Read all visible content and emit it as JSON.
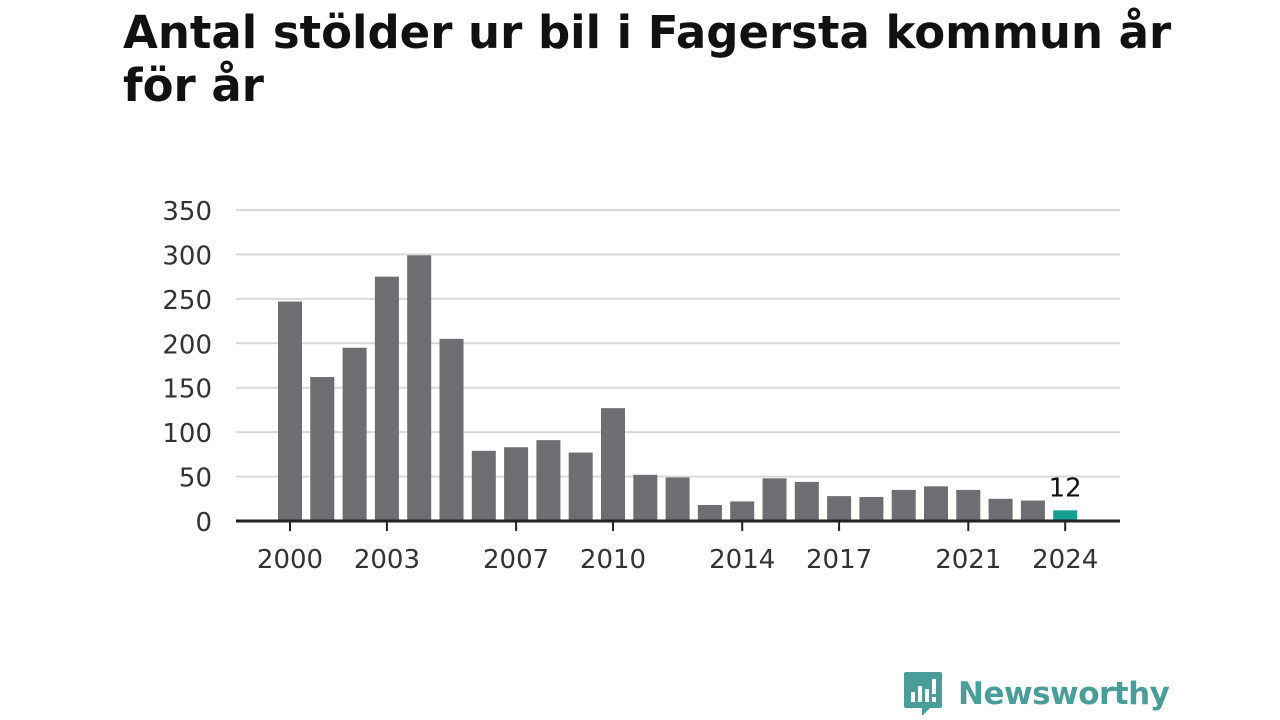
{
  "title": "Antal stölder ur bil i Fagersta kommun år för år",
  "brand": {
    "name": "Newsworthy",
    "icon": "newsworthy-logo-icon",
    "color": "#4a9e99"
  },
  "colors": {
    "bar": "#6e6d72",
    "highlight": "#14a092",
    "grid": "#d9d9d9",
    "axis": "#222222"
  },
  "chart_data": {
    "type": "bar",
    "title": "Antal stölder ur bil i Fagersta kommun år för år",
    "xlabel": "",
    "ylabel": "",
    "categories": [
      "2000",
      "2001",
      "2002",
      "2003",
      "2004",
      "2005",
      "2006",
      "2007",
      "2008",
      "2009",
      "2010",
      "2011",
      "2012",
      "2013",
      "2014",
      "2015",
      "2016",
      "2017",
      "2018",
      "2019",
      "2020",
      "2021",
      "2022",
      "2023",
      "2024"
    ],
    "values": [
      247,
      162,
      195,
      275,
      299,
      205,
      79,
      83,
      91,
      77,
      127,
      52,
      49,
      18,
      22,
      48,
      44,
      28,
      27,
      35,
      39,
      35,
      25,
      23,
      12
    ],
    "ylim": [
      0,
      350
    ],
    "yticks": [
      0,
      50,
      100,
      150,
      200,
      250,
      300,
      350
    ],
    "xticks": [
      "2000",
      "2003",
      "2007",
      "2010",
      "2014",
      "2017",
      "2021",
      "2024"
    ],
    "highlight_category": "2024",
    "annotations": [
      {
        "category": "2024",
        "text": "12"
      }
    ],
    "grid": true,
    "legend": "none"
  }
}
